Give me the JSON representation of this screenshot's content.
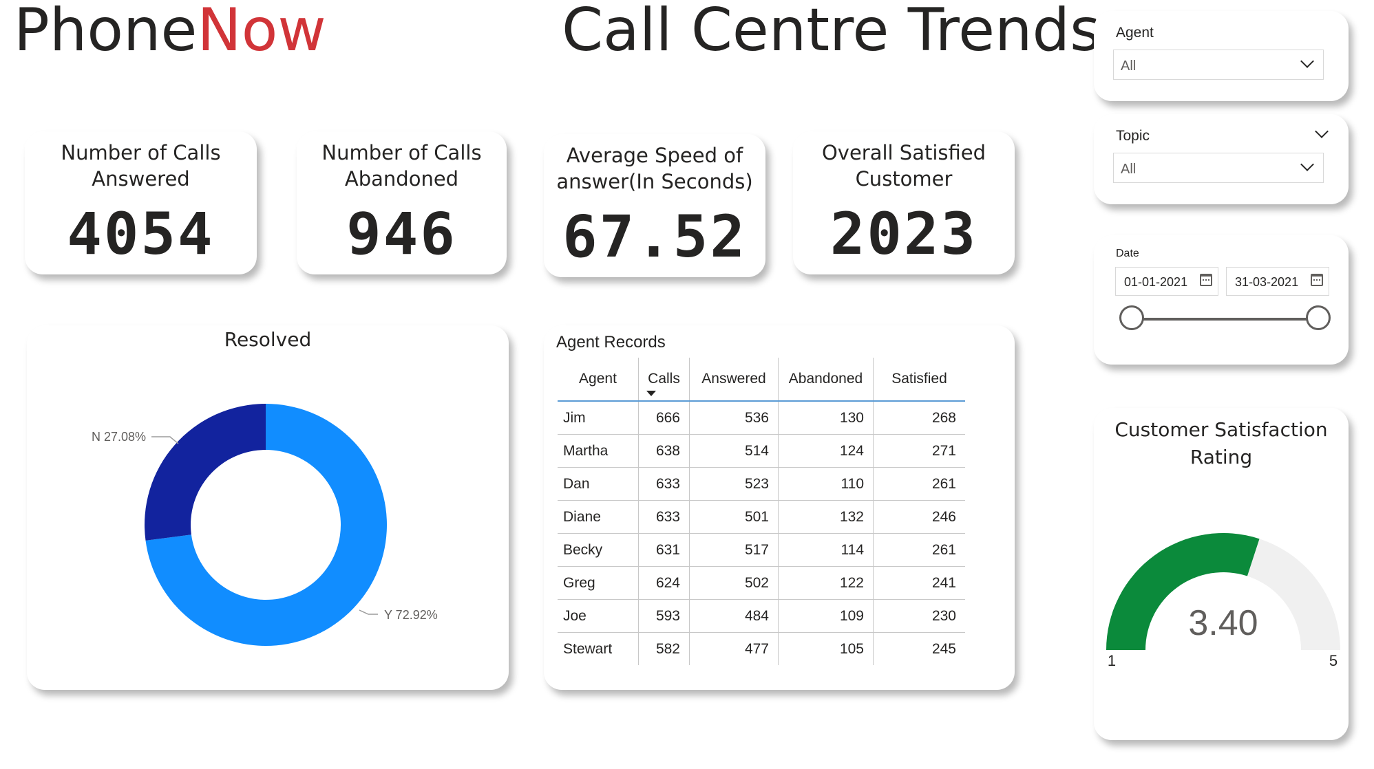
{
  "header": {
    "brand_part1": "Phone",
    "brand_part2": "Now",
    "title": "Call Centre Trends"
  },
  "colors": {
    "brand_accent": "#d13438",
    "donut_yes": "#118dff",
    "donut_no": "#12239e",
    "gauge_fill": "#0b8a3b",
    "gauge_track": "#f0f0f0"
  },
  "kpis": [
    {
      "label_line1": "Number of Calls",
      "label_line2": "Answered",
      "value": "4054"
    },
    {
      "label_line1": "Number of Calls",
      "label_line2": "Abandoned",
      "value": "946"
    },
    {
      "label_line1": "Average Speed of",
      "label_line2": "answer(In Seconds)",
      "value": "67.52"
    },
    {
      "label_line1": "Overall Satisfied",
      "label_line2": "Customer",
      "value": "2023"
    }
  ],
  "resolved": {
    "title": "Resolved",
    "label_no": "N 27.08%",
    "label_yes": "Y 72.92%"
  },
  "agent_table": {
    "title": "Agent Records",
    "columns": [
      "Agent",
      "Calls",
      "Answered",
      "Abandoned",
      "Satisfied"
    ],
    "rows": [
      {
        "agent": "Jim",
        "calls": "666",
        "answered": "536",
        "abandoned": "130",
        "satisfied": "268"
      },
      {
        "agent": "Martha",
        "calls": "638",
        "answered": "514",
        "abandoned": "124",
        "satisfied": "271"
      },
      {
        "agent": "Dan",
        "calls": "633",
        "answered": "523",
        "abandoned": "110",
        "satisfied": "261"
      },
      {
        "agent": "Diane",
        "calls": "633",
        "answered": "501",
        "abandoned": "132",
        "satisfied": "246"
      },
      {
        "agent": "Becky",
        "calls": "631",
        "answered": "517",
        "abandoned": "114",
        "satisfied": "261"
      },
      {
        "agent": "Greg",
        "calls": "624",
        "answered": "502",
        "abandoned": "122",
        "satisfied": "241"
      },
      {
        "agent": "Joe",
        "calls": "593",
        "answered": "484",
        "abandoned": "109",
        "satisfied": "230"
      },
      {
        "agent": "Stewart",
        "calls": "582",
        "answered": "477",
        "abandoned": "105",
        "satisfied": "245"
      }
    ]
  },
  "filters": {
    "agent": {
      "label": "Agent",
      "value": "All"
    },
    "topic": {
      "label": "Topic",
      "value": "All"
    },
    "date": {
      "label": "Date",
      "start": "01-01-2021",
      "end": "31-03-2021"
    }
  },
  "gauge": {
    "title_line1": "Customer Satisfaction",
    "title_line2": "Rating",
    "value_label": "3.40",
    "min_label": "1",
    "max_label": "5"
  },
  "chart_data": [
    {
      "type": "pie",
      "title": "Resolved",
      "categories": [
        "Y",
        "N"
      ],
      "values": [
        72.92,
        27.08
      ],
      "donut": true
    },
    {
      "type": "gauge",
      "title": "Customer Satisfaction Rating",
      "value": 3.4,
      "min": 1,
      "max": 5
    }
  ]
}
